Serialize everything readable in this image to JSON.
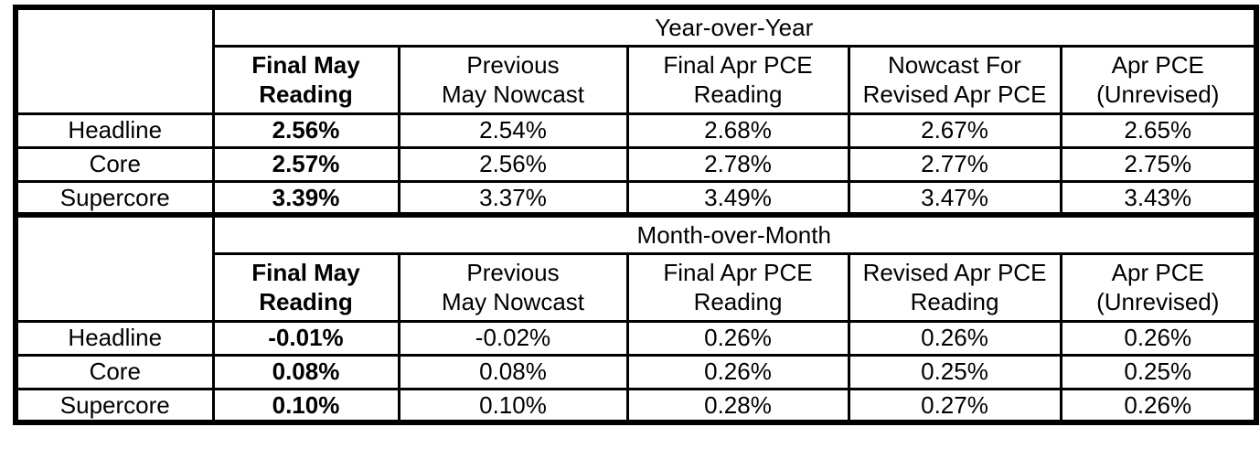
{
  "chart_data": [
    {
      "type": "table",
      "title": "Year-over-Year",
      "columns": [
        "Final May\nReading",
        "Previous\nMay Nowcast",
        "Final Apr PCE\nReading",
        "Nowcast For\nRevised Apr PCE",
        "Apr PCE\n(Unrevised)"
      ],
      "rows": [
        {
          "label": "Headline",
          "values": [
            "2.56%",
            "2.54%",
            "2.68%",
            "2.67%",
            "2.65%"
          ]
        },
        {
          "label": "Core",
          "values": [
            "2.57%",
            "2.56%",
            "2.78%",
            "2.77%",
            "2.75%"
          ]
        },
        {
          "label": "Supercore",
          "values": [
            "3.39%",
            "3.37%",
            "3.49%",
            "3.47%",
            "3.43%"
          ]
        }
      ]
    },
    {
      "type": "table",
      "title": "Month-over-Month",
      "columns": [
        "Final May\nReading",
        "Previous\nMay Nowcast",
        "Final Apr PCE\nReading",
        "Revised Apr PCE\nReading",
        "Apr PCE\n(Unrevised)"
      ],
      "rows": [
        {
          "label": "Headline",
          "values": [
            "-0.01%",
            "-0.02%",
            "0.26%",
            "0.26%",
            "0.26%"
          ]
        },
        {
          "label": "Core",
          "values": [
            "0.08%",
            "0.08%",
            "0.26%",
            "0.25%",
            "0.25%"
          ]
        },
        {
          "label": "Supercore",
          "values": [
            "0.10%",
            "0.10%",
            "0.28%",
            "0.27%",
            "0.26%"
          ]
        }
      ]
    }
  ],
  "colors": {
    "border": "#000000",
    "text": "#000000",
    "background": "#ffffff"
  }
}
